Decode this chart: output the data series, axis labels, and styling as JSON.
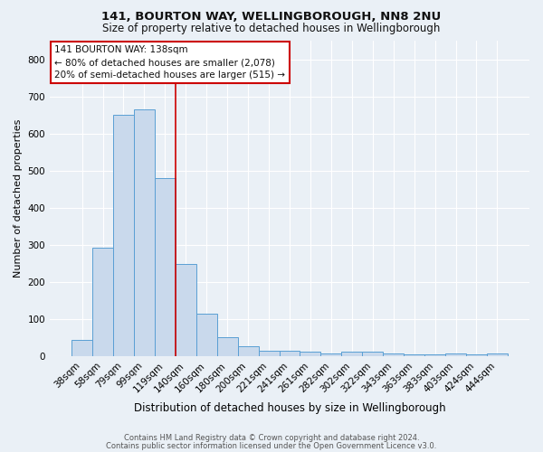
{
  "title1": "141, BOURTON WAY, WELLINGBOROUGH, NN8 2NU",
  "title2": "Size of property relative to detached houses in Wellingborough",
  "xlabel": "Distribution of detached houses by size in Wellingborough",
  "ylabel": "Number of detached properties",
  "bar_labels": [
    "38sqm",
    "58sqm",
    "79sqm",
    "99sqm",
    "119sqm",
    "140sqm",
    "160sqm",
    "180sqm",
    "200sqm",
    "221sqm",
    "241sqm",
    "261sqm",
    "282sqm",
    "302sqm",
    "322sqm",
    "343sqm",
    "363sqm",
    "383sqm",
    "403sqm",
    "424sqm",
    "444sqm"
  ],
  "bar_heights": [
    45,
    293,
    650,
    665,
    480,
    250,
    115,
    52,
    28,
    16,
    16,
    13,
    8,
    13,
    13,
    8,
    5,
    5,
    8,
    5,
    8
  ],
  "bar_color": "#c9d9ec",
  "bar_edge_color": "#5a9fd4",
  "red_line_bar_index": 5,
  "red_line_color": "#cc0000",
  "ylim": [
    0,
    850
  ],
  "yticks": [
    0,
    100,
    200,
    300,
    400,
    500,
    600,
    700,
    800
  ],
  "annotation_line1": "141 BOURTON WAY: 138sqm",
  "annotation_line2": "← 80% of detached houses are smaller (2,078)",
  "annotation_line3": "20% of semi-detached houses are larger (515) →",
  "annotation_box_color": "#ffffff",
  "annotation_box_edge_color": "#cc0000",
  "footer1": "Contains HM Land Registry data © Crown copyright and database right 2024.",
  "footer2": "Contains public sector information licensed under the Open Government Licence v3.0.",
  "background_color": "#eaf0f6",
  "grid_color": "#ffffff",
  "title1_fontsize": 9.5,
  "title2_fontsize": 8.5,
  "xlabel_fontsize": 8.5,
  "ylabel_fontsize": 8.0,
  "tick_fontsize": 7.5,
  "footer_fontsize": 6.0
}
